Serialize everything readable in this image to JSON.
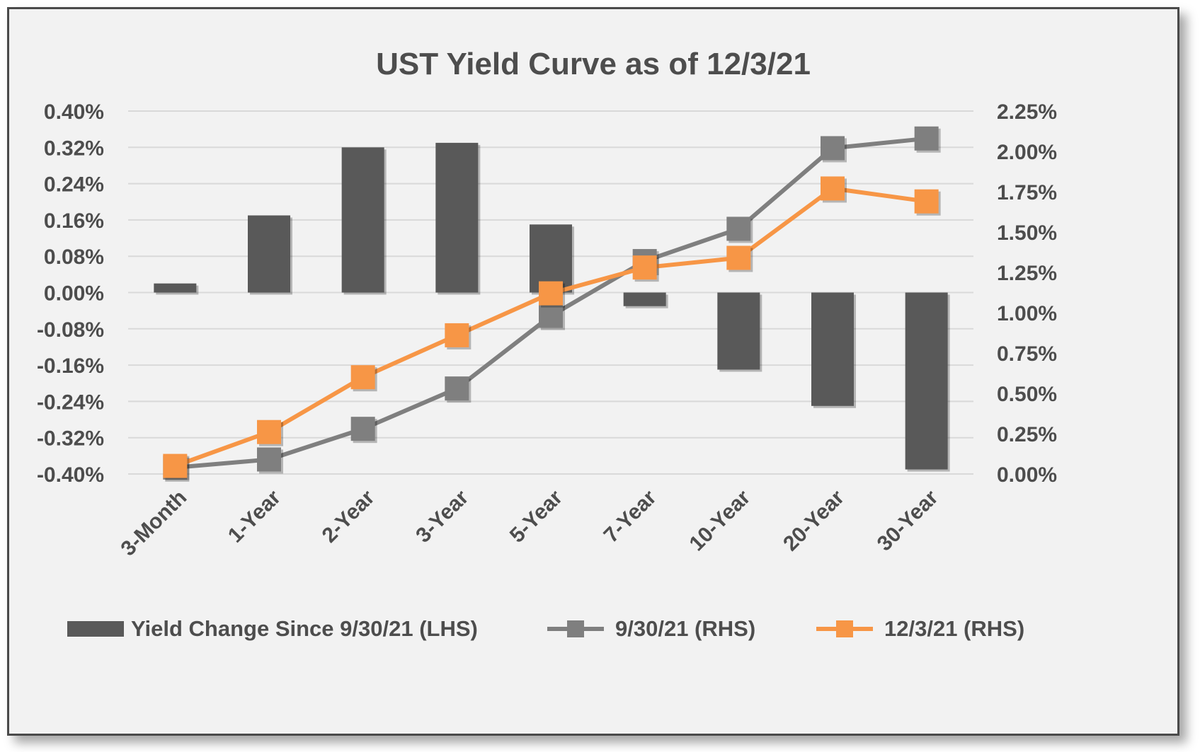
{
  "chart_data": {
    "type": "bar",
    "title": "UST Yield Curve as of 12/3/21",
    "categories": [
      "3-Month",
      "1-Year",
      "2-Year",
      "3-Year",
      "5-Year",
      "7-Year",
      "10-Year",
      "20-Year",
      "30-Year"
    ],
    "series": [
      {
        "name": "Yield Change Since 9/30/21 (LHS)",
        "type": "bar",
        "axis": "left",
        "color": "#595959",
        "values": [
          0.02,
          0.17,
          0.32,
          0.33,
          0.15,
          -0.03,
          -0.17,
          -0.25,
          -0.39
        ]
      },
      {
        "name": "9/30/21 (RHS)",
        "type": "line",
        "axis": "right",
        "color": "#7f7f7f",
        "marker": "square",
        "values": [
          0.04,
          0.09,
          0.28,
          0.53,
          0.98,
          1.32,
          1.52,
          2.02,
          2.08
        ]
      },
      {
        "name": "12/3/21 (RHS)",
        "type": "line",
        "axis": "right",
        "color": "#f79646",
        "marker": "square",
        "values": [
          0.05,
          0.26,
          0.6,
          0.86,
          1.12,
          1.28,
          1.34,
          1.77,
          1.69
        ]
      }
    ],
    "y_left": {
      "min": -0.4,
      "max": 0.4,
      "step": 0.08,
      "tick_labels": [
        "-0.40%",
        "-0.32%",
        "-0.24%",
        "-0.16%",
        "-0.08%",
        "0.00%",
        "0.08%",
        "0.16%",
        "0.24%",
        "0.32%",
        "0.40%"
      ]
    },
    "y_right": {
      "min": 0.0,
      "max": 2.25,
      "step": 0.25,
      "tick_labels": [
        "0.00%",
        "0.25%",
        "0.50%",
        "0.75%",
        "1.00%",
        "1.25%",
        "1.50%",
        "1.75%",
        "2.00%",
        "2.25%"
      ]
    },
    "xlabel": "",
    "ylabel": "",
    "grid": true,
    "legend_position": "bottom"
  }
}
